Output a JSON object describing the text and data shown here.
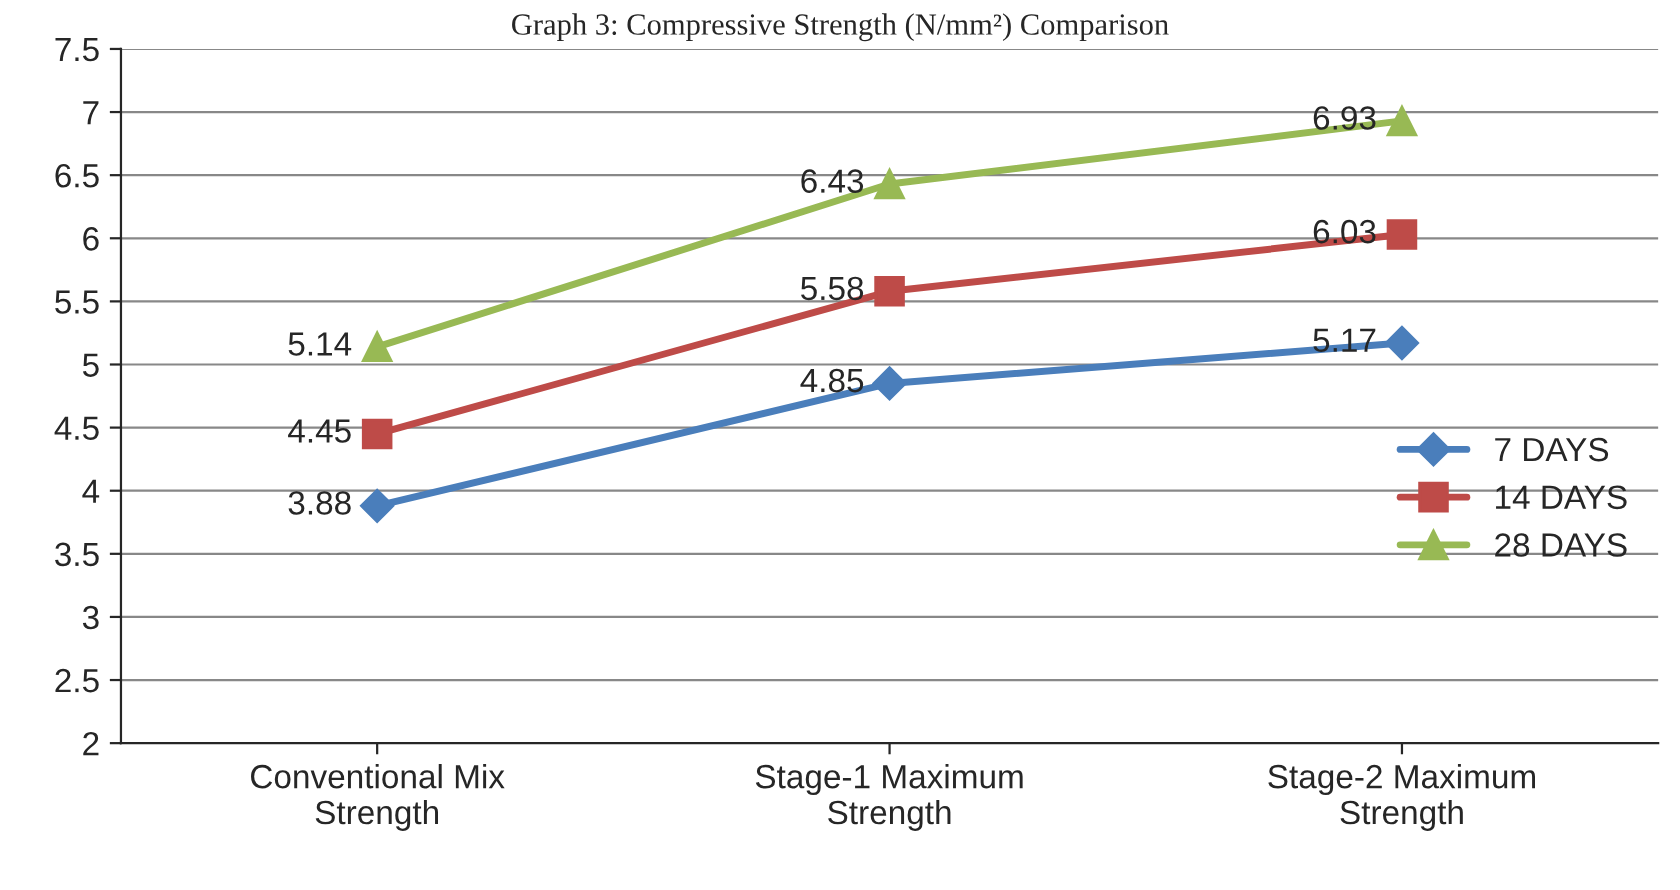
{
  "chart_data": {
    "type": "line",
    "title": "Graph 3: Compressive Strength (N/mm²) Comparison",
    "categories": [
      "Conventional Mix\nStrength",
      "Stage-1 Maximum\nStrength",
      "Stage-2 Maximum\nStrength"
    ],
    "series": [
      {
        "name": "7 DAYS",
        "color": "#4a7ebb",
        "marker": "diamond",
        "values": [
          3.88,
          4.85,
          5.17
        ]
      },
      {
        "name": "14 DAYS",
        "color": "#be4b48",
        "marker": "square",
        "values": [
          4.45,
          5.58,
          6.03
        ]
      },
      {
        "name": "28 DAYS",
        "color": "#98b954",
        "marker": "triangle",
        "values": [
          5.14,
          6.43,
          6.93
        ]
      }
    ],
    "ylim": [
      2,
      7.5
    ],
    "yticks": [
      2,
      2.5,
      3,
      3.5,
      4,
      4.5,
      5,
      5.5,
      6,
      6.5,
      7,
      7.5
    ],
    "grid": "y",
    "legend": "right",
    "data_labels": true
  }
}
